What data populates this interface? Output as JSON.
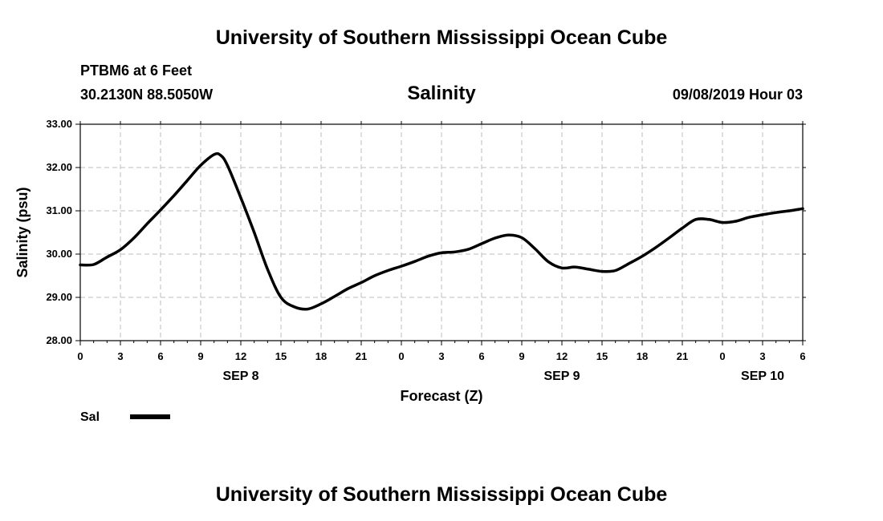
{
  "header": {
    "title": "University of Southern Mississippi Ocean Cube",
    "station": "PTBM6 at 6 Feet",
    "location": "30.2130N 88.5050W",
    "datetime": "09/08/2019 Hour 03"
  },
  "footer": {
    "title": "University of Southern Mississippi Ocean Cube"
  },
  "chart_data": {
    "type": "line",
    "title": "Salinity",
    "xlabel": "Forecast (Z)",
    "ylabel": "Salinity (psu)",
    "xlim": [
      0,
      54
    ],
    "ylim": [
      28,
      33
    ],
    "yticks": [
      "28.00",
      "29.00",
      "30.00",
      "31.00",
      "32.00",
      "33.00"
    ],
    "xtick_labels": [
      "0",
      "3",
      "6",
      "9",
      "12",
      "15",
      "18",
      "21",
      "0",
      "3",
      "6",
      "9",
      "12",
      "15",
      "18",
      "21",
      "0",
      "3",
      "6"
    ],
    "date_labels": [
      {
        "hour": 12,
        "label": "SEP 8"
      },
      {
        "hour": 36,
        "label": "SEP 9"
      },
      {
        "hour": 51,
        "label": "SEP 10"
      }
    ],
    "grid": true,
    "legend": {
      "position": "bottom-left",
      "label": "Sal"
    },
    "series": [
      {
        "name": "Sal",
        "color": "#000000",
        "x": [
          0,
          1,
          2,
          3,
          4,
          5,
          6,
          7,
          8,
          9,
          10,
          10.5,
          11,
          12,
          13,
          14,
          15,
          16,
          17,
          18,
          19,
          20,
          21,
          22,
          23,
          24,
          25,
          26,
          27,
          28,
          29,
          30,
          31,
          32,
          33,
          34,
          35,
          36,
          37,
          38,
          39,
          40,
          41,
          42,
          43,
          44,
          45,
          46,
          47,
          48,
          49,
          50,
          51,
          52,
          53,
          54
        ],
        "values": [
          29.75,
          29.76,
          29.93,
          30.1,
          30.37,
          30.7,
          31.02,
          31.35,
          31.7,
          32.05,
          32.3,
          32.28,
          32.05,
          31.3,
          30.5,
          29.65,
          29.0,
          28.78,
          28.73,
          28.85,
          29.02,
          29.2,
          29.34,
          29.5,
          29.62,
          29.72,
          29.83,
          29.95,
          30.03,
          30.05,
          30.11,
          30.24,
          30.37,
          30.44,
          30.38,
          30.12,
          29.82,
          29.68,
          29.7,
          29.65,
          29.6,
          29.62,
          29.78,
          29.95,
          30.15,
          30.37,
          30.6,
          30.8,
          30.8,
          30.73,
          30.76,
          30.85,
          30.91,
          30.96,
          31.0,
          31.05
        ]
      }
    ]
  }
}
